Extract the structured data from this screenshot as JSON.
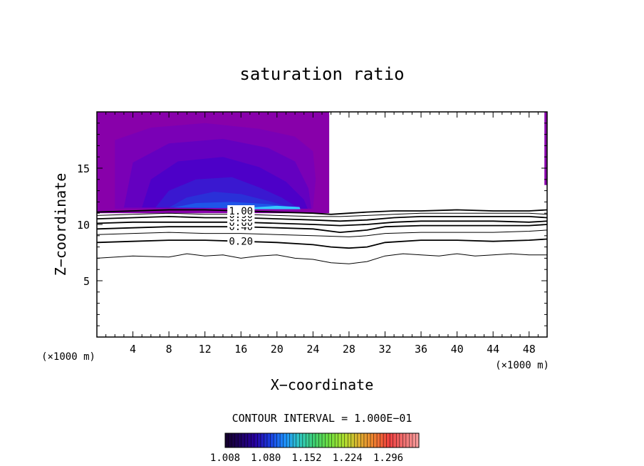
{
  "chart_data": {
    "type": "contour",
    "title": "saturation ratio",
    "xlabel": "X−coordinate",
    "ylabel": "Z−coordinate",
    "x_unit": "(×1000 m)",
    "y_unit": "(×1000 m)",
    "xlim": [
      0,
      50
    ],
    "ylim": [
      0,
      20
    ],
    "x_ticks": [
      4,
      8,
      12,
      16,
      20,
      24,
      28,
      32,
      36,
      40,
      44,
      48
    ],
    "y_ticks": [
      5,
      10,
      15
    ],
    "contour_interval_text": "CONTOUR INTERVAL = 1.000E−01",
    "contour_lines": [
      {
        "level": 0.1,
        "label": "",
        "points": [
          [
            0,
            7.0
          ],
          [
            4,
            7.2
          ],
          [
            8,
            7.1
          ],
          [
            10,
            7.4
          ],
          [
            12,
            7.2
          ],
          [
            14,
            7.3
          ],
          [
            16,
            7.0
          ],
          [
            18,
            7.2
          ],
          [
            20,
            7.3
          ],
          [
            22,
            7.0
          ],
          [
            24,
            6.9
          ],
          [
            26,
            6.6
          ],
          [
            28,
            6.5
          ],
          [
            30,
            6.7
          ],
          [
            32,
            7.2
          ],
          [
            34,
            7.4
          ],
          [
            36,
            7.3
          ],
          [
            38,
            7.2
          ],
          [
            40,
            7.4
          ],
          [
            42,
            7.2
          ],
          [
            44,
            7.3
          ],
          [
            46,
            7.4
          ],
          [
            48,
            7.3
          ],
          [
            50,
            7.3
          ]
        ]
      },
      {
        "level": 0.2,
        "label": "0.20",
        "points": [
          [
            0,
            8.4
          ],
          [
            4,
            8.5
          ],
          [
            8,
            8.6
          ],
          [
            12,
            8.6
          ],
          [
            16,
            8.5
          ],
          [
            20,
            8.4
          ],
          [
            24,
            8.2
          ],
          [
            26,
            8.0
          ],
          [
            28,
            7.9
          ],
          [
            30,
            8.0
          ],
          [
            32,
            8.4
          ],
          [
            36,
            8.6
          ],
          [
            40,
            8.6
          ],
          [
            44,
            8.5
          ],
          [
            48,
            8.6
          ],
          [
            50,
            8.7
          ]
        ]
      },
      {
        "level": 0.3,
        "label": "",
        "points": [
          [
            0,
            9.1
          ],
          [
            4,
            9.2
          ],
          [
            8,
            9.3
          ],
          [
            12,
            9.2
          ],
          [
            16,
            9.2
          ],
          [
            20,
            9.1
          ],
          [
            24,
            9.0
          ],
          [
            28,
            8.9
          ],
          [
            30,
            9.0
          ],
          [
            32,
            9.2
          ],
          [
            36,
            9.3
          ],
          [
            40,
            9.3
          ],
          [
            44,
            9.3
          ],
          [
            48,
            9.4
          ],
          [
            50,
            9.5
          ]
        ]
      },
      {
        "level": 0.4,
        "label": "0.40",
        "points": [
          [
            0,
            9.6
          ],
          [
            4,
            9.7
          ],
          [
            8,
            9.8
          ],
          [
            12,
            9.8
          ],
          [
            16,
            9.8
          ],
          [
            20,
            9.7
          ],
          [
            24,
            9.6
          ],
          [
            27,
            9.3
          ],
          [
            30,
            9.5
          ],
          [
            32,
            9.8
          ],
          [
            36,
            9.9
          ],
          [
            40,
            9.9
          ],
          [
            44,
            9.9
          ],
          [
            48,
            9.9
          ],
          [
            50,
            10.0
          ]
        ]
      },
      {
        "level": 0.6,
        "label": "0.60",
        "points": [
          [
            0,
            10.1
          ],
          [
            4,
            10.2
          ],
          [
            8,
            10.2
          ],
          [
            12,
            10.2
          ],
          [
            16,
            10.2
          ],
          [
            20,
            10.1
          ],
          [
            24,
            10.0
          ],
          [
            27,
            9.9
          ],
          [
            30,
            10.0
          ],
          [
            33,
            10.2
          ],
          [
            36,
            10.3
          ],
          [
            40,
            10.3
          ],
          [
            44,
            10.3
          ],
          [
            48,
            10.2
          ],
          [
            50,
            10.3
          ]
        ]
      },
      {
        "level": 0.8,
        "label": "0.80",
        "points": [
          [
            0,
            10.5
          ],
          [
            4,
            10.6
          ],
          [
            8,
            10.7
          ],
          [
            12,
            10.6
          ],
          [
            16,
            10.6
          ],
          [
            20,
            10.5
          ],
          [
            24,
            10.4
          ],
          [
            27,
            10.3
          ],
          [
            30,
            10.4
          ],
          [
            33,
            10.6
          ],
          [
            36,
            10.7
          ],
          [
            40,
            10.7
          ],
          [
            44,
            10.7
          ],
          [
            48,
            10.7
          ],
          [
            50,
            10.6
          ]
        ]
      },
      {
        "level": 0.9,
        "label": "0.90",
        "points": [
          [
            0,
            10.8
          ],
          [
            4,
            10.9
          ],
          [
            8,
            11.0
          ],
          [
            12,
            10.9
          ],
          [
            16,
            10.9
          ],
          [
            20,
            10.8
          ],
          [
            24,
            10.7
          ],
          [
            27,
            10.7
          ],
          [
            30,
            10.8
          ],
          [
            33,
            10.9
          ],
          [
            36,
            11.0
          ],
          [
            40,
            11.0
          ],
          [
            44,
            11.0
          ],
          [
            48,
            11.0
          ],
          [
            50,
            10.9
          ]
        ]
      },
      {
        "level": 1.0,
        "label": "1.00",
        "points": [
          [
            0,
            11.1
          ],
          [
            4,
            11.2
          ],
          [
            8,
            11.3
          ],
          [
            12,
            11.3
          ],
          [
            16,
            11.2
          ],
          [
            20,
            11.1
          ],
          [
            24,
            11.0
          ],
          [
            26,
            10.9
          ],
          [
            28,
            11.0
          ],
          [
            30,
            11.1
          ],
          [
            33,
            11.2
          ],
          [
            36,
            11.2
          ],
          [
            40,
            11.3
          ],
          [
            44,
            11.2
          ],
          [
            48,
            11.2
          ],
          [
            50,
            11.3
          ]
        ]
      }
    ],
    "fill_region": {
      "x_range": [
        0,
        25.8
      ],
      "z_range": [
        11,
        20
      ],
      "color": "#8800aa"
    },
    "fill_bands": [
      {
        "color": "#7a00b6",
        "points": [
          [
            2,
            12
          ],
          [
            2,
            17.5
          ],
          [
            6,
            18.6
          ],
          [
            12,
            19
          ],
          [
            18,
            18.5
          ],
          [
            22,
            17.8
          ],
          [
            24,
            16.5
          ],
          [
            24.3,
            14
          ],
          [
            24,
            11.4
          ],
          [
            2,
            11.4
          ]
        ]
      },
      {
        "color": "#6400c0",
        "points": [
          [
            3,
            11.5
          ],
          [
            4,
            15.5
          ],
          [
            8,
            17.2
          ],
          [
            14,
            17.6
          ],
          [
            19,
            16.8
          ],
          [
            22,
            15.6
          ],
          [
            23.5,
            13.2
          ],
          [
            23.8,
            11.4
          ]
        ]
      },
      {
        "color": "#4d00c8",
        "points": [
          [
            5,
            11.5
          ],
          [
            6,
            14.0
          ],
          [
            9,
            15.6
          ],
          [
            14,
            16.0
          ],
          [
            18,
            15.1
          ],
          [
            21,
            13.8
          ],
          [
            23,
            12.2
          ],
          [
            23.4,
            11.4
          ]
        ]
      },
      {
        "color": "#3a18d0",
        "points": [
          [
            6.5,
            11.5
          ],
          [
            8,
            13.0
          ],
          [
            11,
            14.0
          ],
          [
            15,
            14.2
          ],
          [
            18,
            13.3
          ],
          [
            20.5,
            12.4
          ],
          [
            22.5,
            11.4
          ]
        ]
      },
      {
        "color": "#2a30d8",
        "points": [
          [
            8,
            11.5
          ],
          [
            10,
            12.4
          ],
          [
            13,
            12.9
          ],
          [
            16,
            12.7
          ],
          [
            19,
            12.1
          ],
          [
            22,
            11.4
          ]
        ]
      },
      {
        "color": "#1f55e8",
        "points": [
          [
            8.5,
            11.5
          ],
          [
            11,
            11.9
          ],
          [
            15,
            12.0
          ],
          [
            19,
            11.8
          ],
          [
            22.5,
            11.4
          ]
        ]
      },
      {
        "color": "#36c8ff",
        "points": [
          [
            16,
            11.45
          ],
          [
            20,
            11.65
          ],
          [
            22.5,
            11.55
          ],
          [
            22.6,
            11.35
          ],
          [
            16,
            11.35
          ]
        ]
      }
    ],
    "edge_fill": {
      "x_range": [
        49.7,
        50
      ],
      "z_range": [
        13.5,
        20
      ],
      "color": "#8800aa"
    },
    "colorbar": {
      "tick_labels": [
        "1.008",
        "1.080",
        "1.152",
        "1.224",
        "1.296"
      ],
      "min": 1.008,
      "max": 1.35,
      "colors": [
        "#14002a",
        "#1e0060",
        "#2800a0",
        "#1a3ce0",
        "#1e90ff",
        "#30c8c0",
        "#40d070",
        "#70e040",
        "#b0e030",
        "#e0b030",
        "#f08030",
        "#f04040",
        "#f07070",
        "#f8a0a0"
      ]
    }
  }
}
